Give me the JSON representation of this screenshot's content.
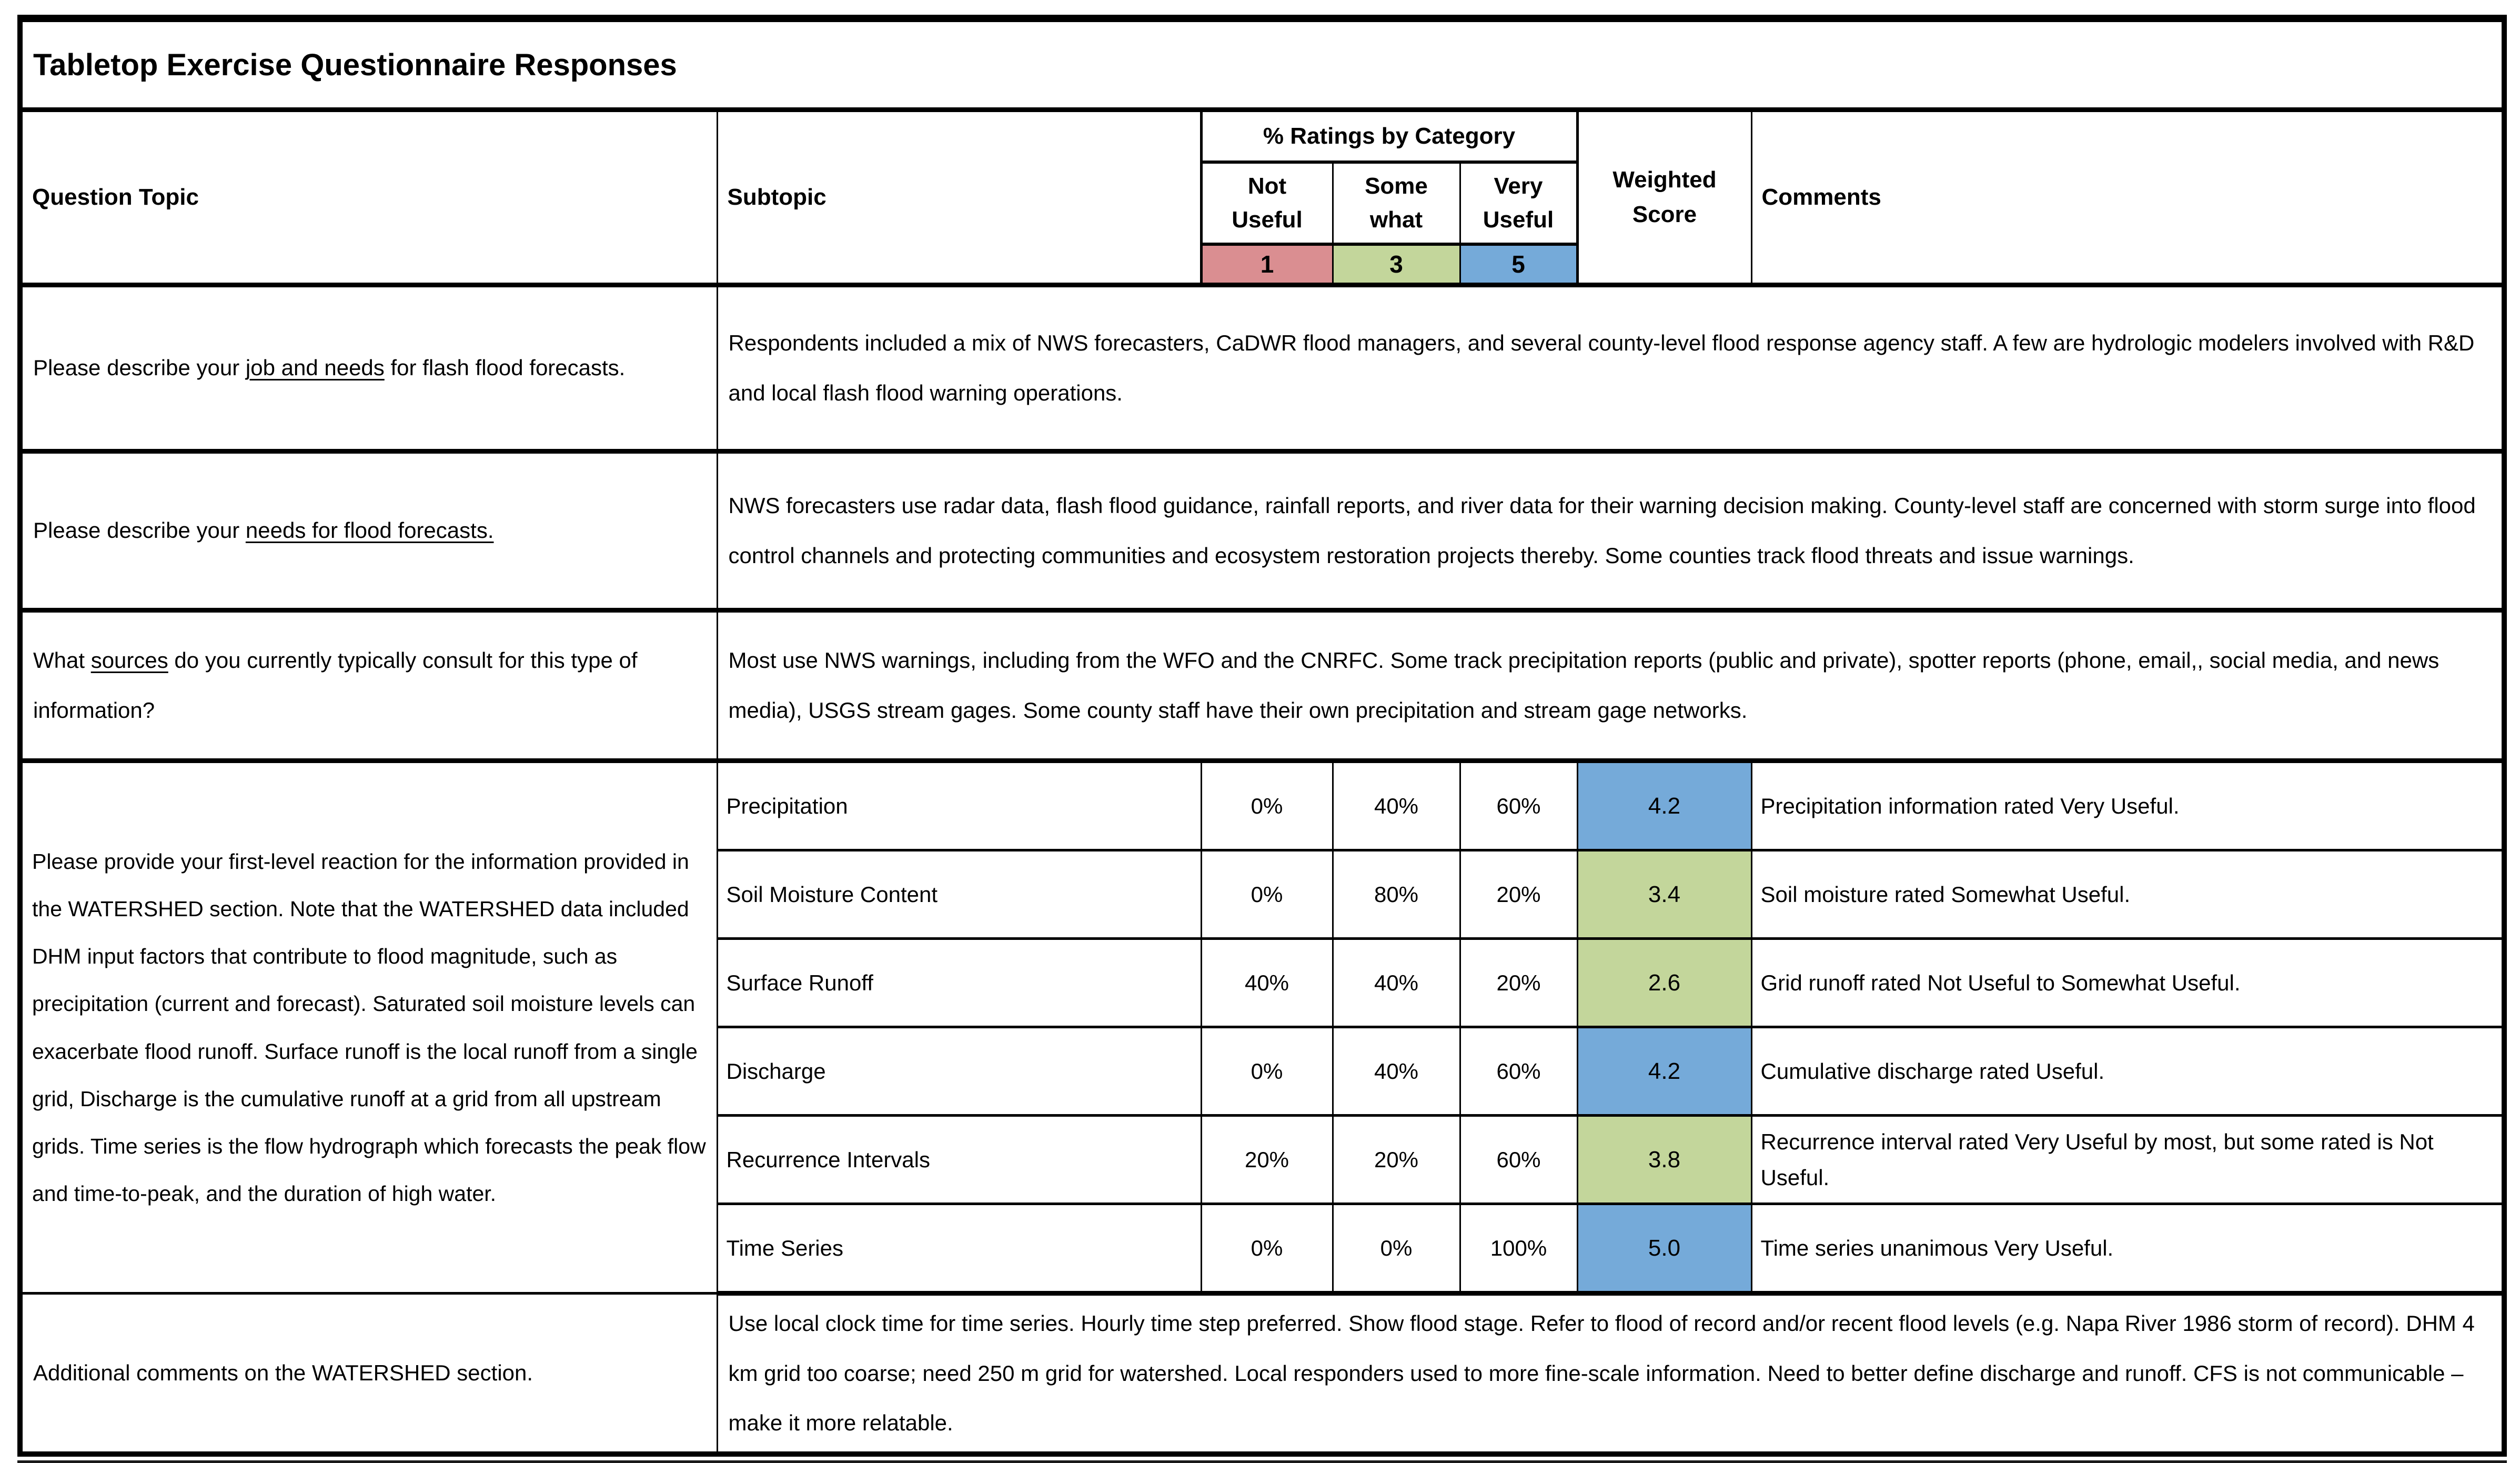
{
  "title": "Tabletop Exercise Questionnaire Responses",
  "header": {
    "question_topic": "Question Topic",
    "subtopic": "Subtopic",
    "ratings_group": "% Ratings by Category",
    "rating_categories": [
      {
        "label": "Not Useful",
        "value": "1",
        "color": "#da8e91"
      },
      {
        "label": "Some what",
        "value": "3",
        "color": "#c3d69b"
      },
      {
        "label": "Very Useful",
        "value": "5",
        "color": "#75aad9"
      }
    ],
    "weighted_score": "Weighted Score",
    "comments": "Comments"
  },
  "qa_rows": [
    {
      "question_prefix": "Please describe your ",
      "question_underline": "job and needs",
      "question_suffix": " for flash flood forecasts.",
      "answer": "Respondents included a mix of NWS forecasters, CaDWR flood managers, and several county-level flood response agency staff. A few are hydrologic modelers involved with R&D and local flash flood warning operations."
    },
    {
      "question_prefix": "Please describe your ",
      "question_underline": "needs for flood forecasts.",
      "question_suffix": "",
      "answer": "NWS forecasters use radar data, flash flood guidance, rainfall reports, and river data for their warning decision making. County-level staff are concerned with storm surge into flood control channels and protecting communities and ecosystem restoration projects thereby. Some counties track flood threats and issue warnings."
    },
    {
      "question_prefix": "What ",
      "question_underline": "sources",
      "question_suffix": " do you currently typically consult for this type of information?",
      "answer": "Most use NWS warnings, including from the WFO and the CNRFC. Some track precipitation reports (public and private), spotter reports (phone, email,, social media, and news media), USGS stream gages. Some county staff have their own precipitation and stream gage networks."
    }
  ],
  "watershed": {
    "question": "Please provide your first-level reaction for the information provided in the WATERSHED section. Note that the WATERSHED data included DHM input factors that contribute to flood magnitude, such as precipitation (current and forecast). Saturated soil moisture levels can exacerbate flood runoff. Surface runoff is the local runoff from a single grid, Discharge is the cumulative runoff at a grid from all upstream grids. Time series is the flow hydrograph which forecasts the peak flow and time-to-peak, and the duration of high water.",
    "rows": [
      {
        "subtopic": "Precipitation",
        "not_useful": "0%",
        "somewhat": "40%",
        "very_useful": "60%",
        "score": "4.2",
        "score_color": "#75aad9",
        "comment": "Precipitation information rated Very Useful."
      },
      {
        "subtopic": "Soil Moisture Content",
        "not_useful": "0%",
        "somewhat": "80%",
        "very_useful": "20%",
        "score": "3.4",
        "score_color": "#c3d69b",
        "comment": "Soil moisture rated Somewhat Useful."
      },
      {
        "subtopic": "Surface Runoff",
        "not_useful": "40%",
        "somewhat": "40%",
        "very_useful": "20%",
        "score": "2.6",
        "score_color": "#c3d69b",
        "comment": "Grid runoff rated Not Useful to Somewhat Useful."
      },
      {
        "subtopic": "Discharge",
        "not_useful": "0%",
        "somewhat": "40%",
        "very_useful": "60%",
        "score": "4.2",
        "score_color": "#75aad9",
        "comment": "Cumulative discharge rated Useful."
      },
      {
        "subtopic": "Recurrence Intervals",
        "not_useful": "20%",
        "somewhat": "20%",
        "very_useful": "60%",
        "score": "3.8",
        "score_color": "#c3d69b",
        "comment": "Recurrence interval rated Very Useful by most, but some rated is Not Useful."
      },
      {
        "subtopic": "Time Series",
        "not_useful": "0%",
        "somewhat": "0%",
        "very_useful": "100%",
        "score": "5.0",
        "score_color": "#75aad9",
        "comment": "Time series unanimous Very Useful."
      }
    ]
  },
  "additional": {
    "question": "Additional comments on the WATERSHED section.",
    "answer": "Use local clock time for time series. Hourly time step preferred. Show flood stage. Refer to flood of record and/or recent flood levels (e.g. Napa River 1986 storm of record). DHM 4 km grid too coarse; need 250 m grid for watershed. Local responders used to more fine-scale information. Need to better define discharge and runoff. CFS is not communicable – make it more relatable."
  }
}
